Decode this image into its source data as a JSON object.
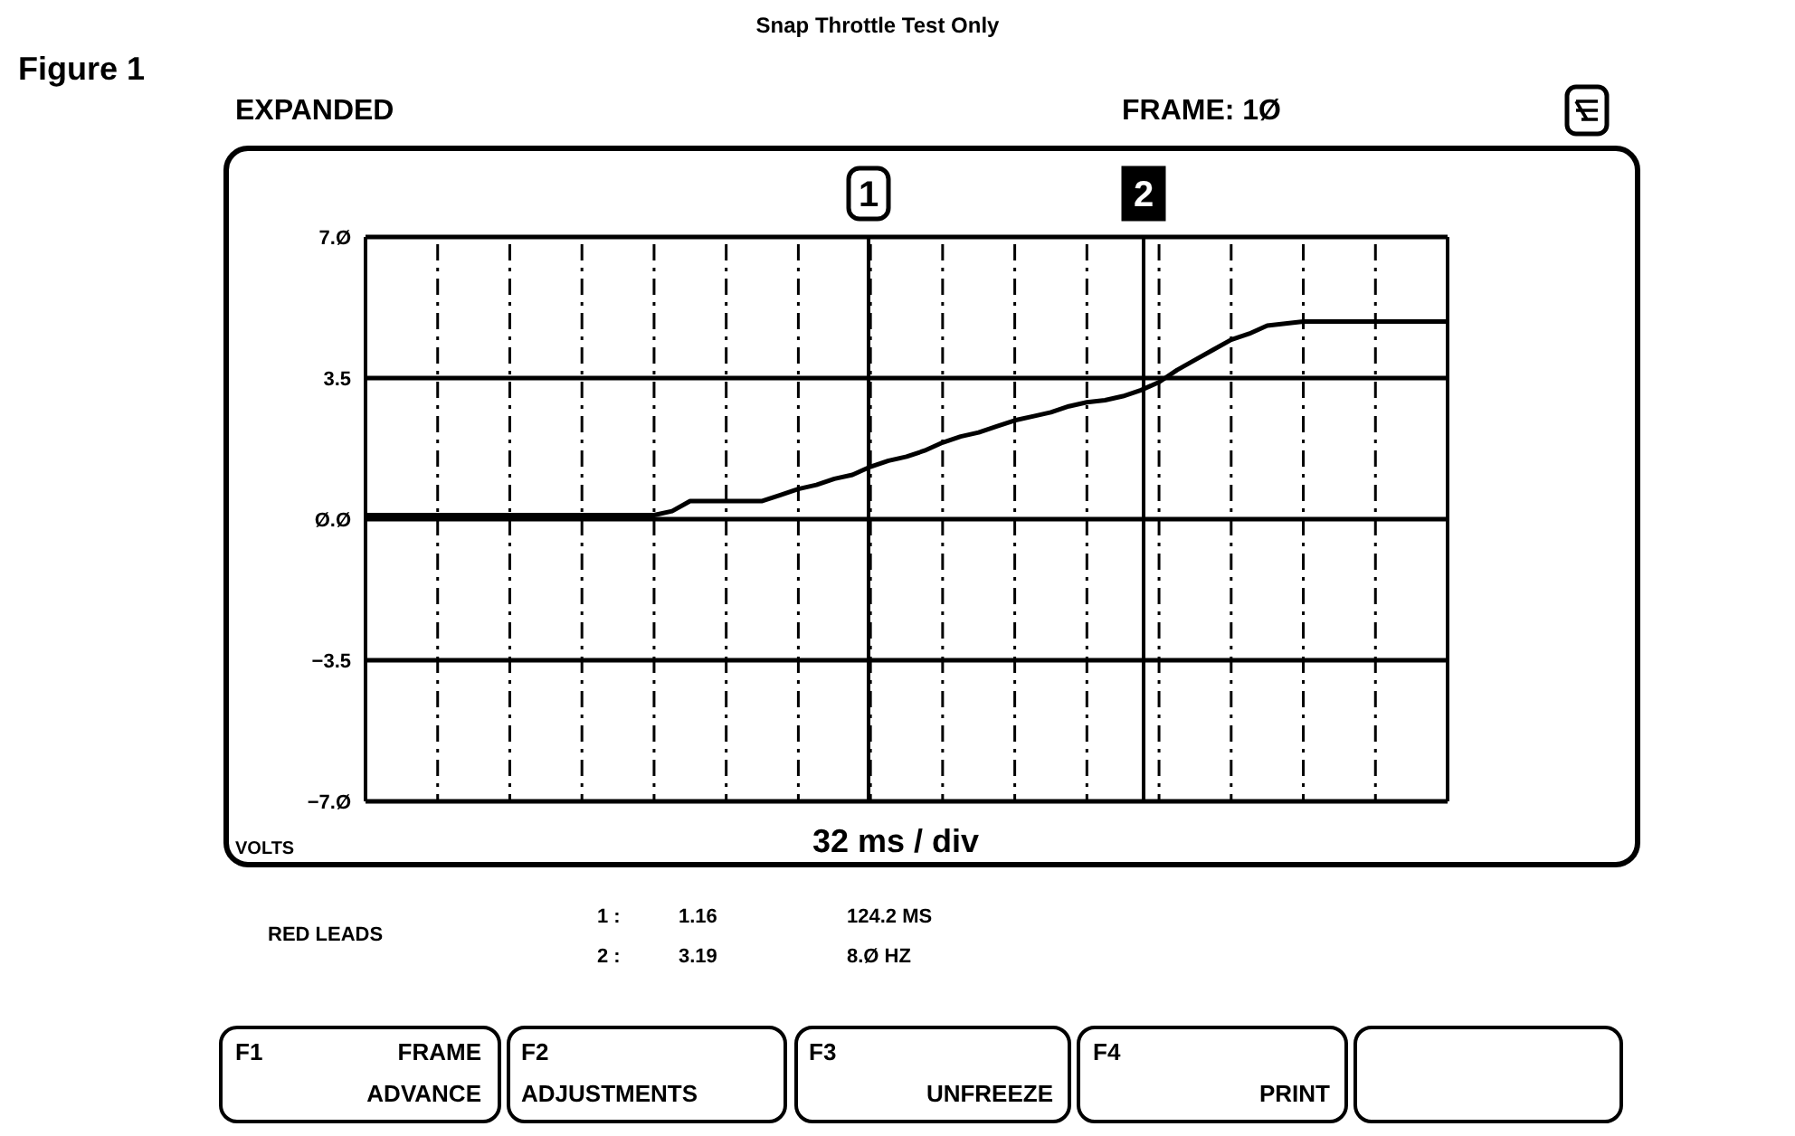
{
  "chart_data": {
    "type": "line",
    "title": "Snap Throttle Test Only",
    "xlabel": "32 ms / div",
    "ylabel": "VOLTS",
    "categories": [
      null,
      null,
      null,
      null,
      null,
      null,
      null,
      null,
      null,
      null,
      null,
      null,
      null,
      null,
      null,
      null,
      null,
      null,
      null,
      null,
      null,
      null,
      null,
      null,
      null,
      null,
      null,
      null,
      null,
      null,
      null,
      null,
      null,
      null,
      null,
      null,
      null,
      null,
      null,
      null,
      null,
      null,
      null,
      null,
      null,
      null,
      null,
      null,
      null,
      null,
      null,
      null,
      null,
      null,
      null,
      null,
      null,
      null,
      null,
      null,
      null
    ],
    "series": [
      {
        "color": "#000000",
        "values": [
          0.1,
          0.1,
          0.1,
          0.1,
          0.1,
          0.1,
          0.1,
          0.1,
          0.1,
          0.1,
          0.1,
          0.1,
          0.1,
          0.1,
          0.1,
          0.1,
          0.1,
          0.2,
          0.45,
          0.45,
          0.45,
          0.45,
          0.45,
          0.6,
          0.75,
          0.85,
          1.0,
          1.1,
          1.3,
          1.45,
          1.55,
          1.7,
          1.9,
          2.05,
          2.15,
          2.3,
          2.45,
          2.55,
          2.65,
          2.8,
          2.9,
          2.95,
          3.05,
          3.2,
          3.4,
          3.7,
          3.95,
          4.2,
          4.45,
          4.6,
          4.8,
          4.85,
          4.9,
          4.9,
          4.9,
          4.9,
          4.9,
          4.9,
          4.9,
          4.9,
          4.9
        ]
      }
    ],
    "ylim": [
      -7,
      7
    ],
    "yticks": [
      {
        "value": 7,
        "label": "7.Ø"
      },
      3.5,
      {
        "value": 0,
        "label": "Ø.Ø"
      },
      {
        "value": -3.5,
        "label": "−3.5"
      },
      {
        "value": -7,
        "label": "−7.Ø"
      }
    ],
    "tick_labels": "y",
    "grid": true,
    "marker": "none",
    "line_style": "solid",
    "annotations": [
      "Figure 1",
      "EXPANDED",
      "FRAME:  1Ø",
      "RED LEADS",
      "1 :",
      "1.16",
      "124.2 MS",
      "2 :",
      "3.19",
      "8.Ø HZ",
      "F1",
      "FRAME",
      "ADVANCE",
      "F2",
      "ADJUSTMENTS",
      "F3",
      "UNFREEZE",
      "F4",
      "PRINT",
      "1",
      "2"
    ]
  }
}
